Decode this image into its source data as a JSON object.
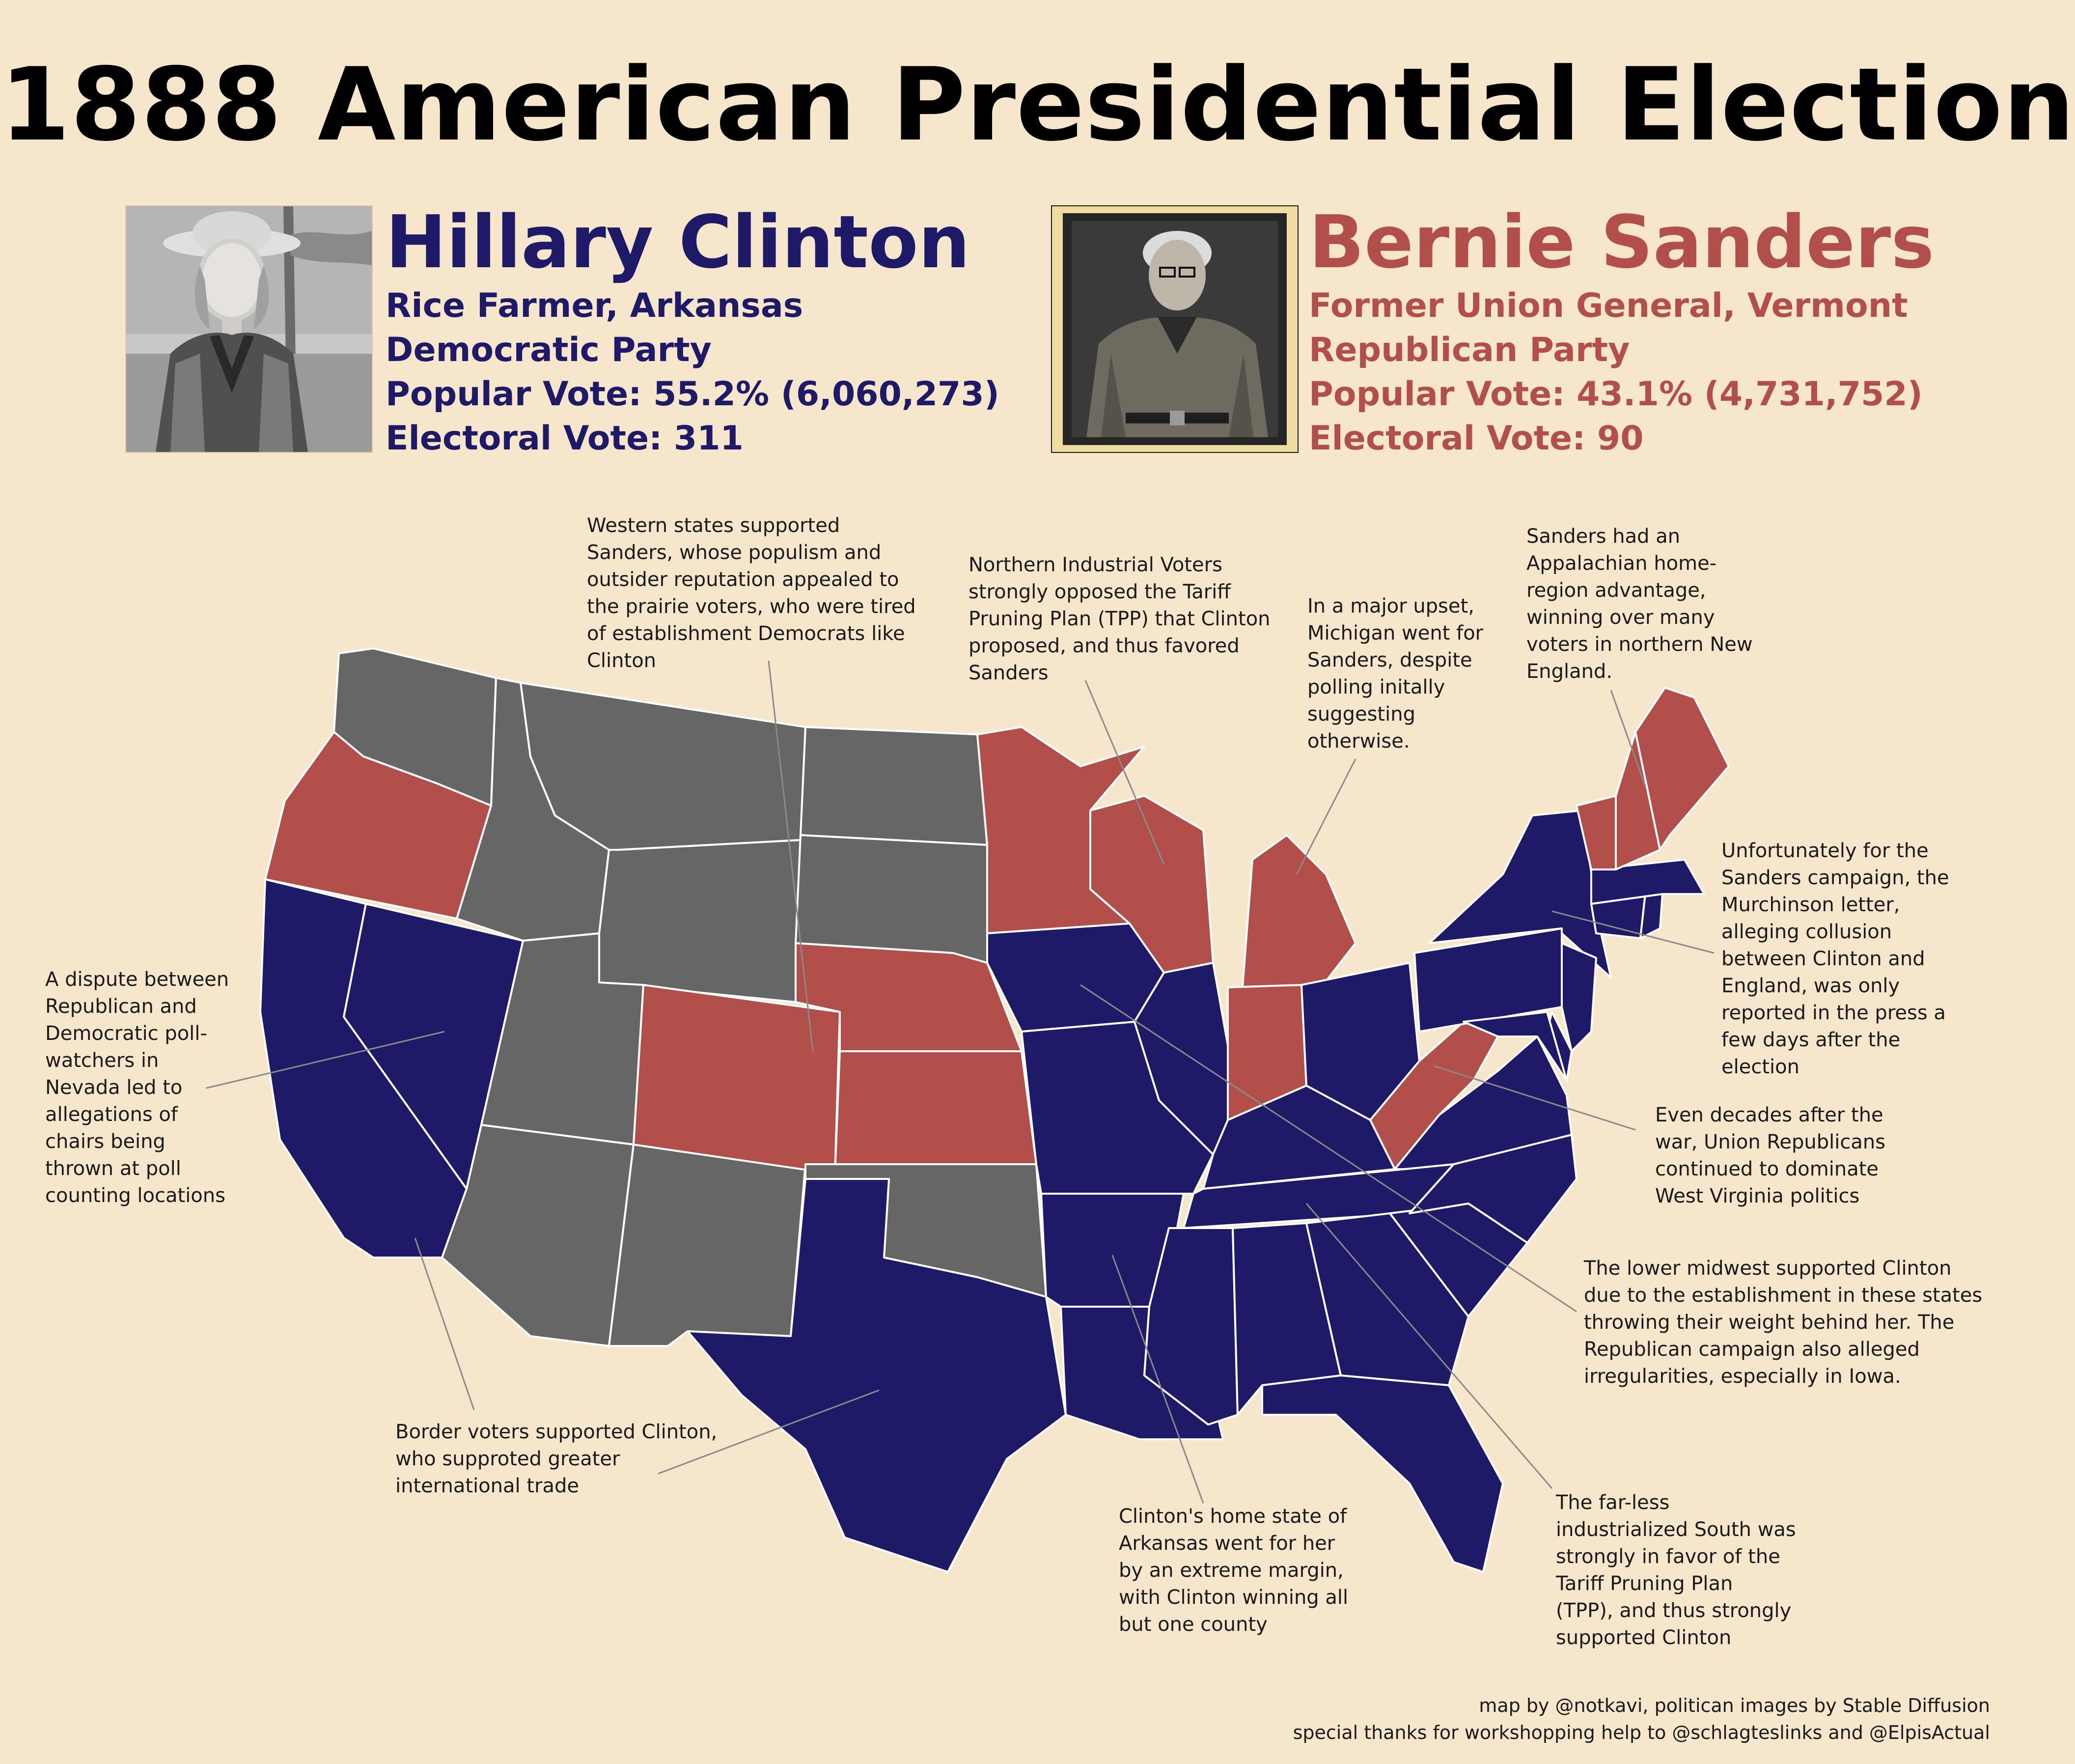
{
  "title": "1888 American Presidential Election",
  "colors": {
    "democratic": "#1f1a68",
    "republican": "#b34f4a",
    "other": "#666666",
    "background": "#f5e6cc",
    "border": "#ffffff"
  },
  "candidates": {
    "clinton": {
      "name": "Hillary Clinton",
      "occupation": "Rice Farmer, Arkansas",
      "party": "Democratic Party",
      "popular_vote": "Popular Vote: 55.2% (6,060,273)",
      "electoral_vote": "Electoral Vote: 311",
      "color": "#1f1a68"
    },
    "sanders": {
      "name": "Bernie Sanders",
      "occupation": "Former Union General, Vermont",
      "party": "Republican Party",
      "popular_vote": "Popular Vote: 43.1% (4,731,752)",
      "electoral_vote": "Electoral Vote: 90",
      "color": "#b34f4a"
    }
  },
  "states": {
    "WA": "other",
    "OR": "republican",
    "CA": "democratic",
    "NV": "democratic",
    "ID": "other",
    "MT": "other",
    "WY": "other",
    "UT": "other",
    "AZ": "other",
    "NM": "other",
    "CO": "republican",
    "ND": "other",
    "SD": "other",
    "NE": "republican",
    "KS": "republican",
    "OK": "other",
    "TX": "democratic",
    "MN": "republican",
    "IA": "democratic",
    "MO": "democratic",
    "AR": "democratic",
    "LA": "democratic",
    "WI": "republican",
    "IL": "democratic",
    "MI": "republican",
    "IN": "republican",
    "OH": "democratic",
    "KY": "democratic",
    "TN": "democratic",
    "MS": "democratic",
    "AL": "democratic",
    "GA": "democratic",
    "FL": "democratic",
    "SC": "democratic",
    "NC": "democratic",
    "VA": "democratic",
    "WV": "republican",
    "PA": "democratic",
    "NY": "democratic",
    "NJ": "democratic",
    "DE": "democratic",
    "MD": "democratic",
    "CT": "democratic",
    "RI": "democratic",
    "MA": "democratic",
    "VT": "republican",
    "NH": "republican",
    "ME": "republican"
  },
  "annotations": {
    "west": "Western states supported\nSanders, whose populism and\noutsider reputation appealed to\nthe prairie voters, who were tired\nof establishment Democrats like\nClinton",
    "north": "Northern Industrial Voters\nstrongly opposed the Tariff\nPruning Plan (TPP) that Clinton\nproposed, and thus favored\nSanders",
    "michigan": "In a major upset,\nMichigan went for\nSanders, despite\npolling initally\nsuggesting\notherwise.",
    "appalachia": "Sanders had an\nAppalachian home-\nregion advantage,\nwinning over many\nvoters in northern New\nEngland.",
    "murchinson": "Unfortunately for the\nSanders campaign, the\nMurchinson letter,\nalleging collusion\nbetween Clinton and\nEngland, was only\nreported in the press a\nfew days after the\nelection",
    "nevada": "A dispute between\nRepublican and\nDemocratic poll-\nwatchers in\nNevada led to\nallegations of\nchairs being\nthrown at poll\ncounting locations",
    "westvirginia": "Even decades after the\nwar, Union Republicans\ncontinued to dominate\nWest Virginia politics",
    "midwest": "The lower midwest supported Clinton\ndue to the establishment in these states\nthrowing their weight behind her. The\nRepublican campaign also alleged\nirregularities, especially in Iowa.",
    "border": "Border voters supported Clinton,\nwho supproted greater\ninternational trade",
    "arkansas": "Clinton's home state of\nArkansas went for her\nby an extreme margin,\nwith Clinton winning all\nbut one county",
    "south": "The far-less\nindustrialized South was\nstrongly in favor of the\nTariff Pruning Plan\n(TPP), and thus strongly\nsupported Clinton"
  },
  "credits": {
    "line1": "map by @notkavi, politican images by Stable Diffusion",
    "line2": "special thanks for workshopping help to @schlagteslinks and @ElpisActual"
  }
}
